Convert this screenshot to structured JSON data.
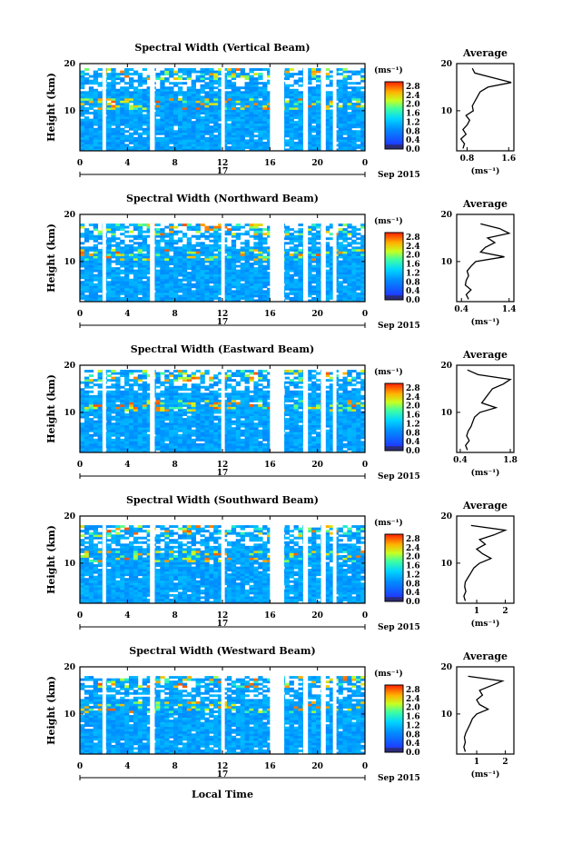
{
  "figure": {
    "ylabel": "Height (km)",
    "xlabel": "Local Time",
    "average_title": "Average",
    "month_label": "Sep 2015",
    "day_label": "17",
    "unit_label": "(ms⁻¹)",
    "avg_xlabel": "(ms⁻¹)"
  },
  "chart_data": [
    {
      "type": "heatmap",
      "title": "Spectral Width (Vertical Beam)",
      "x_range": [
        0,
        24
      ],
      "x_ticks": [
        "0",
        "4",
        "8",
        "12",
        "16",
        "20",
        "0"
      ],
      "y_range": [
        1.5,
        20
      ],
      "y_ticks": [
        "20",
        "10"
      ],
      "colorbar": {
        "range": [
          0,
          3.0
        ],
        "ticks": [
          "2.8",
          "2.4",
          "2.0",
          "1.6",
          "1.2",
          "0.8",
          "0.4",
          "0.0"
        ]
      },
      "gaps_hours": [
        [
          1.9,
          2.2
        ],
        [
          5.9,
          6.3
        ],
        [
          11.9,
          12.2
        ],
        [
          16.0,
          17.2
        ],
        [
          18.8,
          19.2
        ],
        [
          20.3,
          20.7
        ],
        [
          21.3,
          21.6
        ]
      ],
      "upper_limit_km": 19.0,
      "average_profile": {
        "x_ticks": [
          "0.8",
          "1.6"
        ],
        "x_range": [
          0.6,
          1.7
        ],
        "height_km": [
          2,
          3,
          4,
          5,
          6,
          7,
          8,
          9,
          10,
          11,
          12,
          13,
          14,
          15,
          16,
          17,
          18,
          19
        ],
        "value": [
          0.72,
          0.75,
          0.68,
          0.78,
          0.72,
          0.8,
          0.85,
          0.78,
          0.92,
          0.9,
          0.95,
          1.0,
          1.05,
          1.2,
          1.65,
          1.3,
          0.95,
          0.9
        ]
      }
    },
    {
      "type": "heatmap",
      "title": "Spectral Width (Northward Beam)",
      "x_range": [
        0,
        24
      ],
      "x_ticks": [
        "0",
        "4",
        "8",
        "12",
        "16",
        "20",
        "0"
      ],
      "y_range": [
        1.5,
        20
      ],
      "y_ticks": [
        "20",
        "10"
      ],
      "colorbar": {
        "range": [
          0,
          3.0
        ],
        "ticks": [
          "2.8",
          "2.4",
          "2.0",
          "1.6",
          "1.2",
          "0.8",
          "0.4",
          "0.0"
        ]
      },
      "gaps_hours": [
        [
          1.9,
          2.2
        ],
        [
          5.9,
          6.3
        ],
        [
          11.9,
          12.2
        ],
        [
          16.0,
          17.2
        ],
        [
          18.8,
          19.2
        ],
        [
          20.3,
          20.7
        ],
        [
          21.3,
          21.6
        ]
      ],
      "upper_limit_km": 18.0,
      "average_profile": {
        "x_ticks": [
          "0.4",
          "1.4"
        ],
        "x_range": [
          0.3,
          1.5
        ],
        "height_km": [
          2,
          3,
          4,
          5,
          6,
          7,
          8,
          9,
          10,
          11,
          12,
          13,
          14,
          15,
          16,
          17,
          18
        ],
        "value": [
          0.55,
          0.5,
          0.6,
          0.48,
          0.5,
          0.55,
          0.52,
          0.6,
          0.7,
          1.3,
          0.8,
          0.9,
          1.1,
          0.95,
          1.4,
          1.2,
          0.8
        ]
      }
    },
    {
      "type": "heatmap",
      "title": "Spectral Width (Eastward Beam)",
      "x_range": [
        0,
        24
      ],
      "x_ticks": [
        "0",
        "4",
        "8",
        "12",
        "16",
        "20",
        "0"
      ],
      "y_range": [
        1.5,
        20
      ],
      "y_ticks": [
        "20",
        "10"
      ],
      "colorbar": {
        "range": [
          0,
          3.0
        ],
        "ticks": [
          "2.8",
          "2.4",
          "2.0",
          "1.6",
          "1.2",
          "0.8",
          "0.4",
          "0.0"
        ]
      },
      "gaps_hours": [
        [
          1.9,
          2.2
        ],
        [
          5.9,
          6.3
        ],
        [
          11.9,
          12.2
        ],
        [
          16.0,
          17.2
        ],
        [
          18.8,
          19.2
        ],
        [
          20.3,
          20.7
        ],
        [
          21.3,
          21.6
        ]
      ],
      "upper_limit_km": 19.0,
      "average_profile": {
        "x_ticks": [
          "0.4",
          "1.8"
        ],
        "x_range": [
          0.3,
          1.9
        ],
        "height_km": [
          2,
          3,
          4,
          5,
          6,
          7,
          8,
          9,
          10,
          11,
          12,
          13,
          14,
          15,
          16,
          17,
          18,
          19
        ],
        "value": [
          0.6,
          0.55,
          0.65,
          0.58,
          0.62,
          0.7,
          0.75,
          0.8,
          0.95,
          1.4,
          1.0,
          1.1,
          1.2,
          1.3,
          1.6,
          1.8,
          0.9,
          0.6
        ]
      }
    },
    {
      "type": "heatmap",
      "title": "Spectral Width (Southward Beam)",
      "x_range": [
        0,
        24
      ],
      "x_ticks": [
        "0",
        "4",
        "8",
        "12",
        "16",
        "20",
        "0"
      ],
      "y_range": [
        1.5,
        20
      ],
      "y_ticks": [
        "20",
        "10"
      ],
      "colorbar": {
        "range": [
          0,
          3.0
        ],
        "ticks": [
          "2.8",
          "2.4",
          "2.0",
          "1.6",
          "1.2",
          "0.8",
          "0.4",
          "0.0"
        ]
      },
      "gaps_hours": [
        [
          1.9,
          2.2
        ],
        [
          5.9,
          6.3
        ],
        [
          11.9,
          12.2
        ],
        [
          16.0,
          17.2
        ],
        [
          18.8,
          19.2
        ],
        [
          20.3,
          20.7
        ],
        [
          21.3,
          21.6
        ]
      ],
      "upper_limit_km": 18.0,
      "average_profile": {
        "x_ticks": [
          "1",
          "2"
        ],
        "x_range": [
          0.3,
          2.3
        ],
        "height_km": [
          2,
          3,
          4,
          5,
          6,
          7,
          8,
          9,
          10,
          11,
          12,
          13,
          14,
          15,
          16,
          17,
          18
        ],
        "value": [
          0.6,
          0.55,
          0.62,
          0.58,
          0.6,
          0.7,
          0.8,
          0.9,
          1.1,
          1.5,
          1.2,
          1.0,
          1.3,
          1.1,
          1.6,
          2.0,
          0.8
        ]
      }
    },
    {
      "type": "heatmap",
      "title": "Spectral Width (Westward Beam)",
      "x_range": [
        0,
        24
      ],
      "x_ticks": [
        "0",
        "4",
        "8",
        "12",
        "16",
        "20",
        "0"
      ],
      "y_range": [
        1.5,
        20
      ],
      "y_ticks": [
        "20",
        "10"
      ],
      "colorbar": {
        "range": [
          0,
          3.0
        ],
        "ticks": [
          "2.8",
          "2.4",
          "2.0",
          "1.6",
          "1.2",
          "0.8",
          "0.4",
          "0.0"
        ]
      },
      "gaps_hours": [
        [
          1.9,
          2.2
        ],
        [
          5.9,
          6.3
        ],
        [
          11.9,
          12.2
        ],
        [
          16.0,
          17.2
        ],
        [
          18.8,
          19.2
        ],
        [
          20.3,
          20.7
        ],
        [
          21.3,
          21.6
        ]
      ],
      "upper_limit_km": 18.0,
      "average_profile": {
        "x_ticks": [
          "1",
          "2"
        ],
        "x_range": [
          0.3,
          2.3
        ],
        "height_km": [
          2,
          3,
          4,
          5,
          6,
          7,
          8,
          9,
          10,
          11,
          12,
          13,
          14,
          15,
          16,
          17,
          18
        ],
        "value": [
          0.6,
          0.55,
          0.6,
          0.57,
          0.62,
          0.7,
          0.78,
          0.85,
          1.0,
          1.4,
          1.1,
          1.0,
          1.2,
          1.1,
          1.5,
          1.9,
          0.7
        ]
      }
    }
  ]
}
